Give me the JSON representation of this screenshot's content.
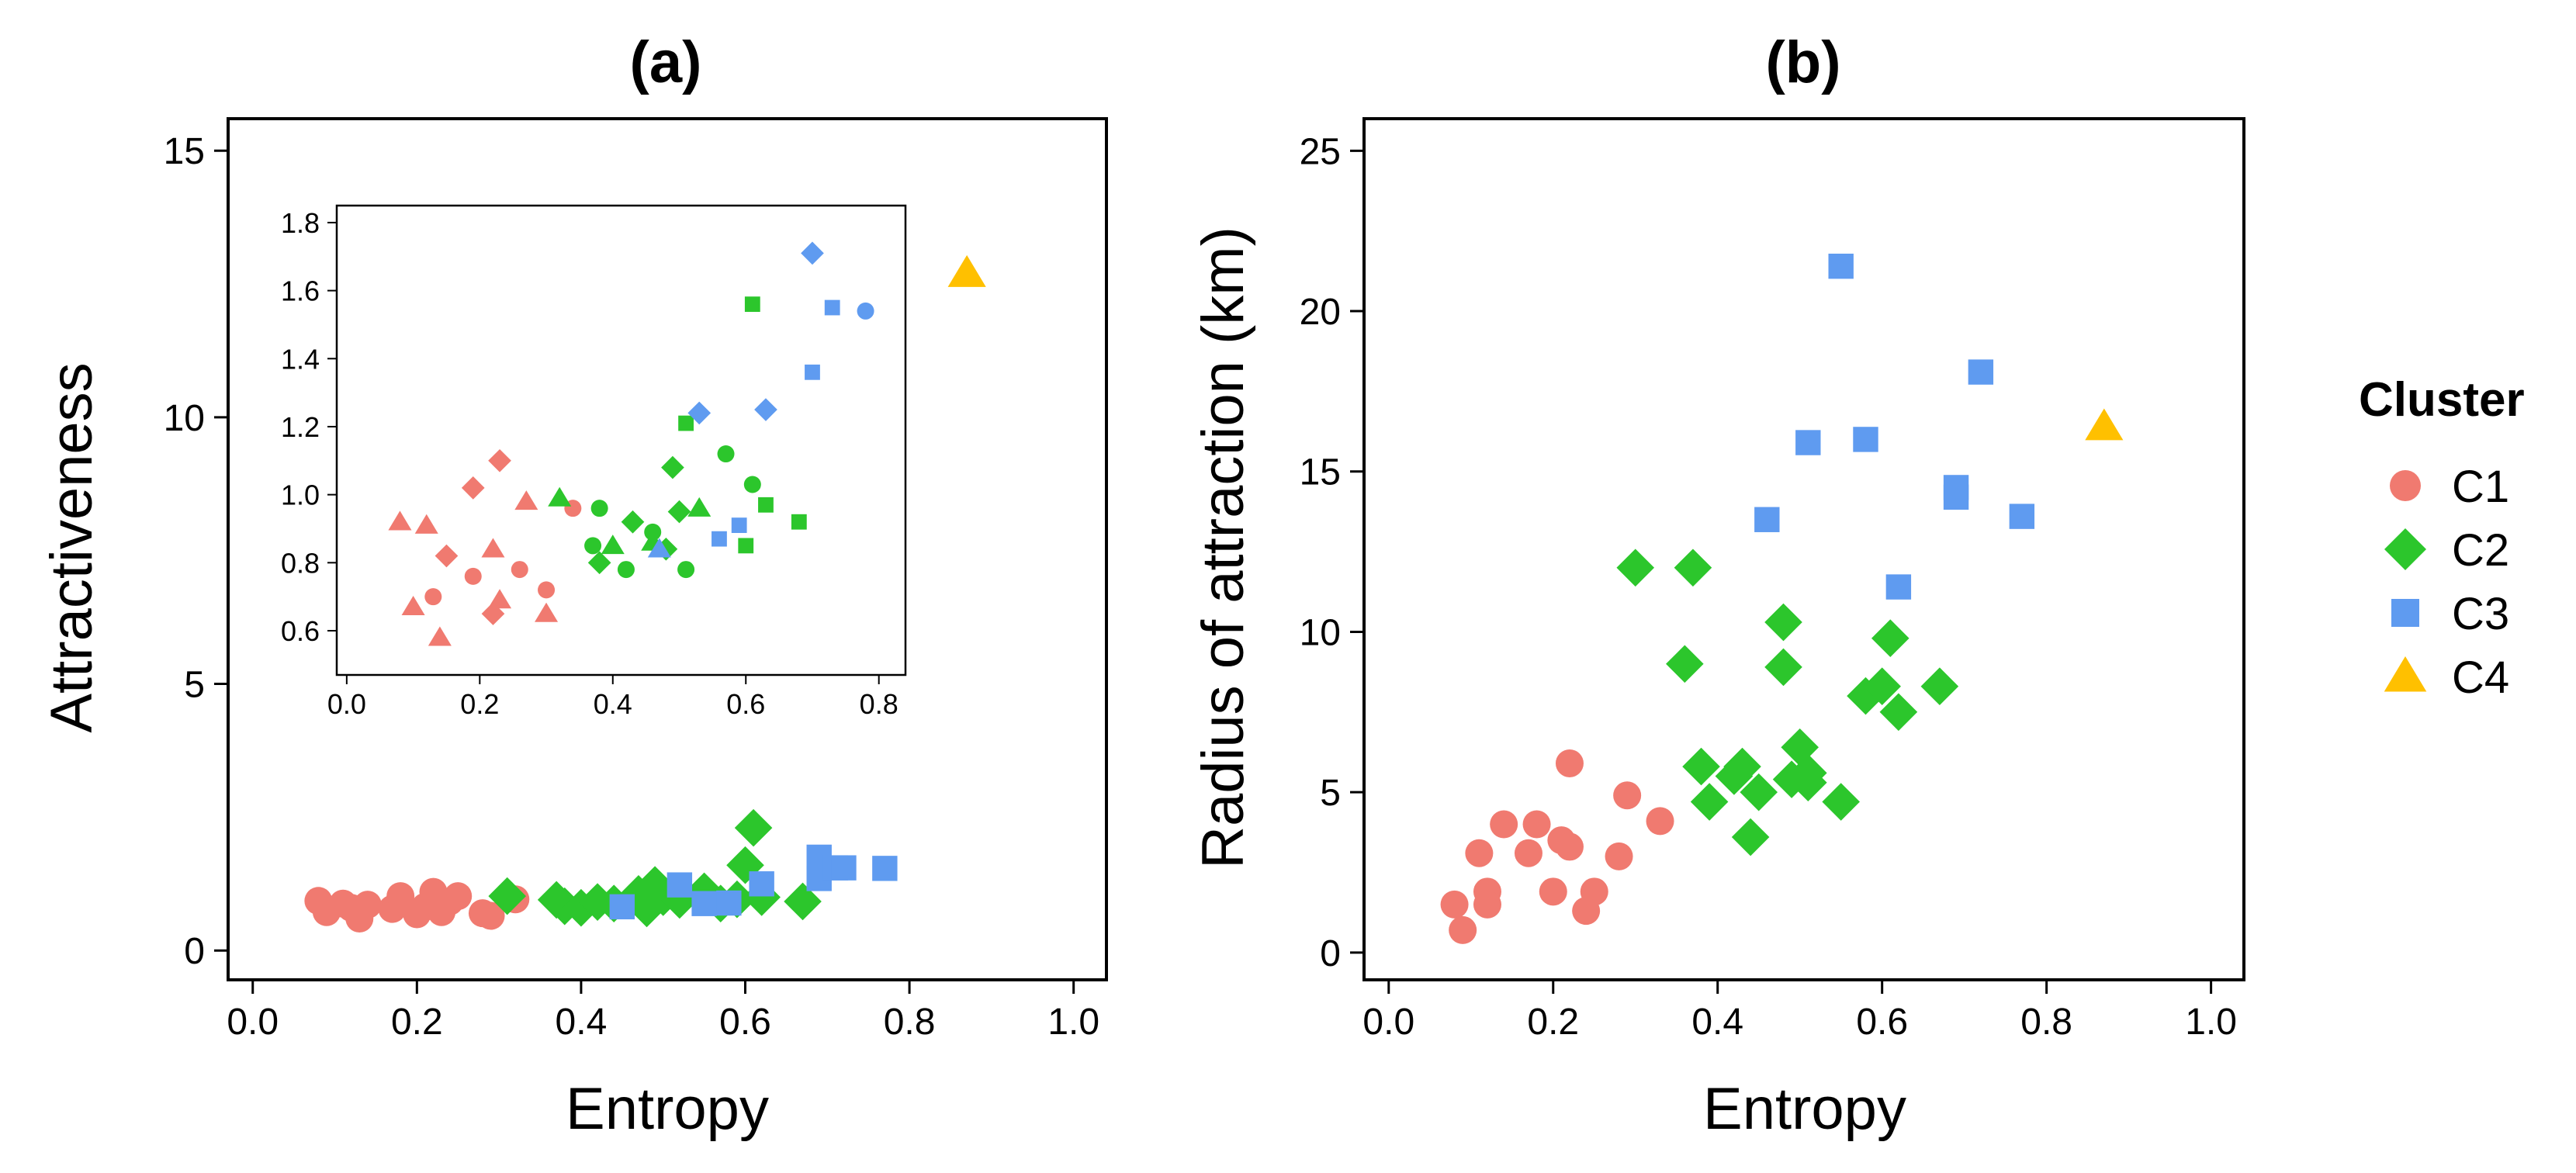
{
  "chart_data": [
    {
      "type": "scatter",
      "title": "(a)",
      "xlabel": "Entropy",
      "ylabel": "Attractiveness",
      "xlim": [
        -0.03,
        1.04
      ],
      "ylim": [
        -0.55,
        15.6
      ],
      "xticks": [
        0.0,
        0.2,
        0.4,
        0.6,
        0.8,
        1.0
      ],
      "xtick_labels": [
        "0.0",
        "0.2",
        "0.4",
        "0.6",
        "0.8",
        "1.0"
      ],
      "yticks": [
        0,
        5,
        10,
        15
      ],
      "ytick_labels": [
        "0",
        "5",
        "10",
        "15"
      ],
      "series": [
        {
          "name": "C1",
          "points": [
            [
              0.08,
              0.93
            ],
            [
              0.09,
              0.72
            ],
            [
              0.11,
              0.88
            ],
            [
              0.12,
              0.8
            ],
            [
              0.13,
              0.6
            ],
            [
              0.14,
              0.86
            ],
            [
              0.17,
              0.78
            ],
            [
              0.18,
              1.02
            ],
            [
              0.2,
              0.68
            ],
            [
              0.21,
              0.82
            ],
            [
              0.22,
              1.1
            ],
            [
              0.23,
              0.72
            ],
            [
              0.24,
              0.92
            ],
            [
              0.25,
              1.02
            ],
            [
              0.28,
              0.7
            ],
            [
              0.29,
              0.65
            ],
            [
              0.32,
              0.96
            ]
          ]
        },
        {
          "name": "C2",
          "points": [
            [
              0.31,
              1.02
            ],
            [
              0.37,
              0.95
            ],
            [
              0.38,
              0.83
            ],
            [
              0.4,
              0.8
            ],
            [
              0.42,
              0.91
            ],
            [
              0.44,
              0.88
            ],
            [
              0.47,
              1.06
            ],
            [
              0.48,
              0.79
            ],
            [
              0.49,
              1.23
            ],
            [
              0.5,
              1.0
            ],
            [
              0.52,
              0.95
            ],
            [
              0.55,
              1.11
            ],
            [
              0.57,
              0.88
            ],
            [
              0.59,
              0.96
            ],
            [
              0.6,
              1.6
            ],
            [
              0.61,
              2.3
            ],
            [
              0.62,
              1.0
            ],
            [
              0.67,
              0.92
            ]
          ]
        },
        {
          "name": "C3",
          "points": [
            [
              0.45,
              0.82
            ],
            [
              0.52,
              1.23
            ],
            [
              0.55,
              0.88
            ],
            [
              0.58,
              0.89
            ],
            [
              0.62,
              1.25
            ],
            [
              0.69,
              1.35
            ],
            [
              0.69,
              1.75
            ],
            [
              0.71,
              1.55
            ],
            [
              0.72,
              1.55
            ],
            [
              0.77,
              1.54
            ]
          ]
        },
        {
          "name": "C4",
          "points": [
            [
              0.87,
              12.7
            ]
          ]
        }
      ],
      "inset": {
        "xlim": [
          -0.015,
          0.84
        ],
        "ylim": [
          0.47,
          1.85
        ],
        "xticks": [
          0.0,
          0.2,
          0.4,
          0.6,
          0.8
        ],
        "xtick_labels": [
          "0.0",
          "0.2",
          "0.4",
          "0.6",
          "0.8"
        ],
        "yticks": [
          0.6,
          0.8,
          1.0,
          1.2,
          1.4,
          1.6,
          1.8
        ],
        "ytick_labels": [
          "0.6",
          "0.8",
          "1.0",
          "1.2",
          "1.4",
          "1.6",
          "1.8"
        ],
        "points": [
          {
            "x": 0.08,
            "y": 0.92,
            "shape": "triangle",
            "color": "#F07A70"
          },
          {
            "x": 0.12,
            "y": 0.91,
            "shape": "triangle",
            "color": "#F07A70"
          },
          {
            "x": 0.1,
            "y": 0.67,
            "shape": "triangle",
            "color": "#F07A70"
          },
          {
            "x": 0.14,
            "y": 0.58,
            "shape": "triangle",
            "color": "#F07A70"
          },
          {
            "x": 0.22,
            "y": 0.84,
            "shape": "triangle",
            "color": "#F07A70"
          },
          {
            "x": 0.23,
            "y": 0.69,
            "shape": "triangle",
            "color": "#F07A70"
          },
          {
            "x": 0.27,
            "y": 0.98,
            "shape": "triangle",
            "color": "#F07A70"
          },
          {
            "x": 0.3,
            "y": 0.65,
            "shape": "triangle",
            "color": "#F07A70"
          },
          {
            "x": 0.15,
            "y": 0.82,
            "shape": "diamond",
            "color": "#F07A70"
          },
          {
            "x": 0.19,
            "y": 1.02,
            "shape": "diamond",
            "color": "#F07A70"
          },
          {
            "x": 0.23,
            "y": 1.1,
            "shape": "diamond",
            "color": "#F07A70"
          },
          {
            "x": 0.22,
            "y": 0.65,
            "shape": "diamond",
            "color": "#F07A70"
          },
          {
            "x": 0.13,
            "y": 0.7,
            "shape": "circle",
            "color": "#F07A70"
          },
          {
            "x": 0.19,
            "y": 0.76,
            "shape": "circle",
            "color": "#F07A70"
          },
          {
            "x": 0.26,
            "y": 0.78,
            "shape": "circle",
            "color": "#F07A70"
          },
          {
            "x": 0.3,
            "y": 0.72,
            "shape": "circle",
            "color": "#F07A70"
          },
          {
            "x": 0.34,
            "y": 0.96,
            "shape": "circle",
            "color": "#F07A70"
          },
          {
            "x": 0.32,
            "y": 0.99,
            "shape": "triangle",
            "color": "#2CC62C"
          },
          {
            "x": 0.4,
            "y": 0.85,
            "shape": "triangle",
            "color": "#2CC62C"
          },
          {
            "x": 0.46,
            "y": 0.86,
            "shape": "triangle",
            "color": "#2CC62C"
          },
          {
            "x": 0.53,
            "y": 0.96,
            "shape": "triangle",
            "color": "#2CC62C"
          },
          {
            "x": 0.38,
            "y": 0.8,
            "shape": "diamond",
            "color": "#2CC62C"
          },
          {
            "x": 0.43,
            "y": 0.92,
            "shape": "diamond",
            "color": "#2CC62C"
          },
          {
            "x": 0.48,
            "y": 0.84,
            "shape": "diamond",
            "color": "#2CC62C"
          },
          {
            "x": 0.49,
            "y": 1.08,
            "shape": "diamond",
            "color": "#2CC62C"
          },
          {
            "x": 0.5,
            "y": 0.95,
            "shape": "diamond",
            "color": "#2CC62C"
          },
          {
            "x": 0.38,
            "y": 0.96,
            "shape": "circle",
            "color": "#2CC62C"
          },
          {
            "x": 0.37,
            "y": 0.85,
            "shape": "circle",
            "color": "#2CC62C"
          },
          {
            "x": 0.42,
            "y": 0.78,
            "shape": "circle",
            "color": "#2CC62C"
          },
          {
            "x": 0.46,
            "y": 0.89,
            "shape": "circle",
            "color": "#2CC62C"
          },
          {
            "x": 0.51,
            "y": 0.78,
            "shape": "circle",
            "color": "#2CC62C"
          },
          {
            "x": 0.57,
            "y": 1.12,
            "shape": "circle",
            "color": "#2CC62C"
          },
          {
            "x": 0.61,
            "y": 1.03,
            "shape": "circle",
            "color": "#2CC62C"
          },
          {
            "x": 0.51,
            "y": 1.21,
            "shape": "square",
            "color": "#2CC62C"
          },
          {
            "x": 0.61,
            "y": 1.56,
            "shape": "square",
            "color": "#2CC62C"
          },
          {
            "x": 0.63,
            "y": 0.97,
            "shape": "square",
            "color": "#2CC62C"
          },
          {
            "x": 0.6,
            "y": 0.85,
            "shape": "square",
            "color": "#2CC62C"
          },
          {
            "x": 0.68,
            "y": 0.92,
            "shape": "square",
            "color": "#2CC62C"
          },
          {
            "x": 0.47,
            "y": 0.84,
            "shape": "triangle",
            "color": "#5F9BF0"
          },
          {
            "x": 0.53,
            "y": 1.24,
            "shape": "diamond",
            "color": "#5F9BF0"
          },
          {
            "x": 0.63,
            "y": 1.25,
            "shape": "diamond",
            "color": "#5F9BF0"
          },
          {
            "x": 0.7,
            "y": 1.71,
            "shape": "diamond",
            "color": "#5F9BF0"
          },
          {
            "x": 0.56,
            "y": 0.87,
            "shape": "square",
            "color": "#5F9BF0"
          },
          {
            "x": 0.59,
            "y": 0.91,
            "shape": "square",
            "color": "#5F9BF0"
          },
          {
            "x": 0.7,
            "y": 1.36,
            "shape": "square",
            "color": "#5F9BF0"
          },
          {
            "x": 0.73,
            "y": 1.55,
            "shape": "square",
            "color": "#5F9BF0"
          },
          {
            "x": 0.78,
            "y": 1.54,
            "shape": "circle",
            "color": "#5F9BF0"
          }
        ]
      }
    },
    {
      "type": "scatter",
      "title": "(b)",
      "xlabel": "Entropy",
      "ylabel": "Radius of attraction (km)",
      "xlim": [
        -0.03,
        1.04
      ],
      "ylim": [
        -0.85,
        26.0
      ],
      "xticks": [
        0.0,
        0.2,
        0.4,
        0.6,
        0.8,
        1.0
      ],
      "xtick_labels": [
        "0.0",
        "0.2",
        "0.4",
        "0.6",
        "0.8",
        "1.0"
      ],
      "yticks": [
        0,
        5,
        10,
        15,
        20,
        25
      ],
      "ytick_labels": [
        "0",
        "5",
        "10",
        "15",
        "20",
        "25"
      ],
      "series": [
        {
          "name": "C1",
          "points": [
            [
              0.08,
              1.5
            ],
            [
              0.09,
              0.7
            ],
            [
              0.11,
              3.1
            ],
            [
              0.12,
              1.9
            ],
            [
              0.12,
              1.5
            ],
            [
              0.14,
              4.0
            ],
            [
              0.17,
              3.1
            ],
            [
              0.18,
              4.0
            ],
            [
              0.2,
              1.9
            ],
            [
              0.21,
              3.5
            ],
            [
              0.22,
              3.3
            ],
            [
              0.22,
              5.9
            ],
            [
              0.24,
              1.3
            ],
            [
              0.25,
              1.9
            ],
            [
              0.28,
              3.0
            ],
            [
              0.29,
              4.9
            ],
            [
              0.33,
              4.1
            ]
          ]
        },
        {
          "name": "C2",
          "points": [
            [
              0.3,
              12.0
            ],
            [
              0.36,
              9.0
            ],
            [
              0.37,
              12.0
            ],
            [
              0.38,
              5.8
            ],
            [
              0.39,
              4.7
            ],
            [
              0.42,
              5.5
            ],
            [
              0.43,
              5.8
            ],
            [
              0.44,
              3.6
            ],
            [
              0.45,
              5.0
            ],
            [
              0.48,
              10.3
            ],
            [
              0.48,
              8.9
            ],
            [
              0.49,
              5.4
            ],
            [
              0.5,
              6.4
            ],
            [
              0.51,
              5.6
            ],
            [
              0.51,
              5.3
            ],
            [
              0.55,
              4.7
            ],
            [
              0.58,
              8.0
            ],
            [
              0.6,
              8.3
            ],
            [
              0.61,
              9.8
            ],
            [
              0.62,
              7.5
            ],
            [
              0.67,
              8.3
            ]
          ]
        },
        {
          "name": "C3",
          "points": [
            [
              0.46,
              13.5
            ],
            [
              0.51,
              15.9
            ],
            [
              0.55,
              21.4
            ],
            [
              0.58,
              16.0
            ],
            [
              0.62,
              11.4
            ],
            [
              0.69,
              14.5
            ],
            [
              0.69,
              14.2
            ],
            [
              0.72,
              18.1
            ],
            [
              0.77,
              13.6
            ]
          ]
        },
        {
          "name": "C4",
          "points": [
            [
              0.87,
              16.4
            ]
          ]
        }
      ]
    }
  ],
  "legend": {
    "title": "Cluster",
    "items": [
      {
        "label": "C1",
        "color": "#F07A70",
        "shape": "circle"
      },
      {
        "label": "C2",
        "color": "#2CC62C",
        "shape": "diamond"
      },
      {
        "label": "C3",
        "color": "#5F9BF0",
        "shape": "square"
      },
      {
        "label": "C4",
        "color": "#FFC000",
        "shape": "triangle"
      }
    ]
  }
}
